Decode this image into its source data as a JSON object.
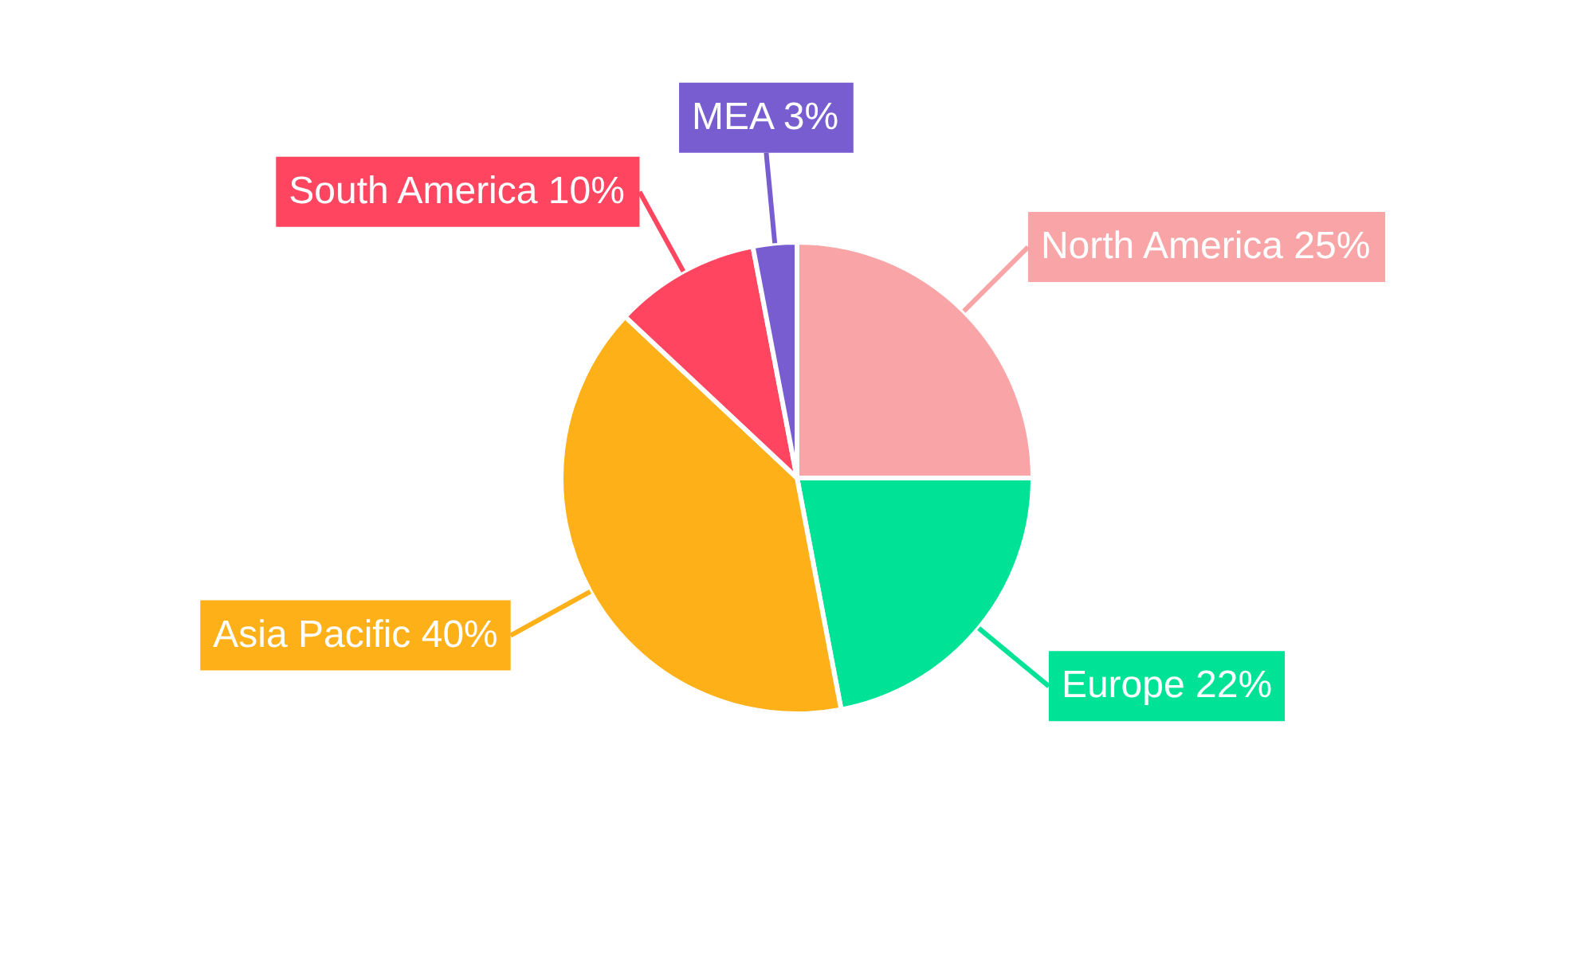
{
  "chart_data": {
    "type": "pie",
    "categories": [
      "North America",
      "Europe",
      "Asia Pacific",
      "South America",
      "MEA"
    ],
    "values": [
      25,
      22,
      40,
      10,
      3
    ],
    "value_labels": [
      "25%",
      "22%",
      "40%",
      "10%",
      "3%"
    ],
    "colors": [
      "#f9a5a7",
      "#00e396",
      "#feb019",
      "#ff4560",
      "#775dd0"
    ]
  }
}
